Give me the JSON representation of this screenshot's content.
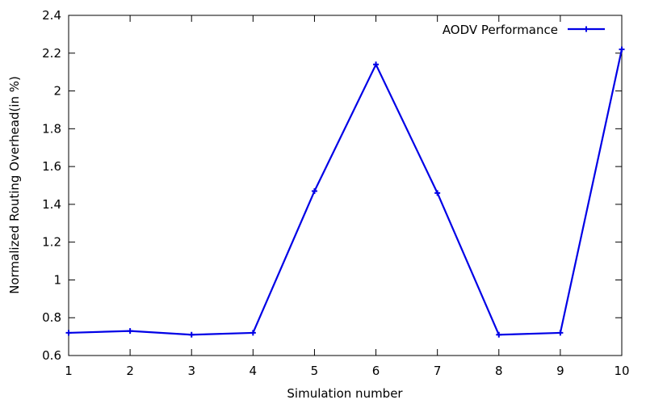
{
  "chart_data": {
    "type": "line",
    "title": "",
    "xlabel": "Simulation number",
    "ylabel": "Normalized Routing Overhead(in %)",
    "xlim": [
      1,
      10
    ],
    "ylim": [
      0.6,
      2.4
    ],
    "xticks": [
      "1",
      "2",
      "3",
      "4",
      "5",
      "6",
      "7",
      "8",
      "9",
      "10"
    ],
    "yticks": [
      "0.6",
      "0.8",
      "1",
      "1.2",
      "1.4",
      "1.6",
      "1.8",
      "2",
      "2.2",
      "2.4"
    ],
    "grid": false,
    "legend_position": "top-right",
    "series": [
      {
        "name": "AODV Performance",
        "color": "#0000e6",
        "marker": "cross",
        "x": [
          1,
          2,
          3,
          4,
          5,
          6,
          7,
          8,
          9,
          10
        ],
        "values": [
          0.72,
          0.73,
          0.71,
          0.72,
          1.47,
          2.14,
          1.46,
          0.71,
          0.72,
          2.22
        ]
      }
    ]
  }
}
